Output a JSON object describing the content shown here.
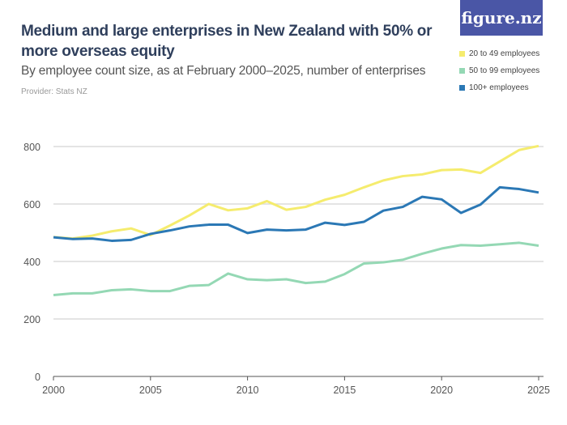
{
  "header": {
    "title": "Medium and large enterprises in New Zealand with 50% or more overseas equity",
    "subtitle": "By employee count size, as at February 2000–2025, number of enterprises",
    "provider": "Provider: Stats NZ",
    "logo": "figure.nz"
  },
  "chart_data": {
    "type": "line",
    "title": "Medium and large enterprises in New Zealand with 50% or more overseas equity",
    "subtitle": "By employee count size, as at February 2000–2025, number of enterprises",
    "xlabel": "",
    "ylabel": "",
    "xlim": [
      2000,
      2025
    ],
    "ylim": [
      0,
      800
    ],
    "x_ticks": [
      2000,
      2005,
      2010,
      2015,
      2020,
      2025
    ],
    "y_ticks": [
      0,
      200,
      400,
      600,
      800
    ],
    "grid": true,
    "legend_position": "top-right",
    "x": [
      2000,
      2001,
      2002,
      2003,
      2004,
      2005,
      2006,
      2007,
      2008,
      2009,
      2010,
      2011,
      2012,
      2013,
      2014,
      2015,
      2016,
      2017,
      2018,
      2019,
      2020,
      2021,
      2022,
      2023,
      2024,
      2025
    ],
    "series": [
      {
        "name": "20 to 49 employees",
        "color": "#f5ec6e",
        "values": [
          485,
          480,
          490,
          505,
          515,
          492,
          525,
          560,
          600,
          578,
          585,
          610,
          580,
          590,
          615,
          632,
          658,
          682,
          697,
          703,
          718,
          720,
          708,
          748,
          788,
          802
        ]
      },
      {
        "name": "50 to 99 employees",
        "color": "#94d8b4",
        "values": [
          283,
          289,
          289,
          300,
          303,
          297,
          297,
          315,
          318,
          358,
          338,
          335,
          338,
          325,
          330,
          356,
          393,
          397,
          406,
          427,
          445,
          457,
          455,
          460,
          465,
          455
        ]
      },
      {
        "name": "100+ employees",
        "color": "#2b78b5",
        "values": [
          484,
          478,
          480,
          472,
          475,
          496,
          508,
          522,
          528,
          528,
          499,
          511,
          508,
          511,
          535,
          527,
          538,
          577,
          590,
          625,
          616,
          569,
          598,
          658,
          652,
          640
        ]
      }
    ]
  }
}
